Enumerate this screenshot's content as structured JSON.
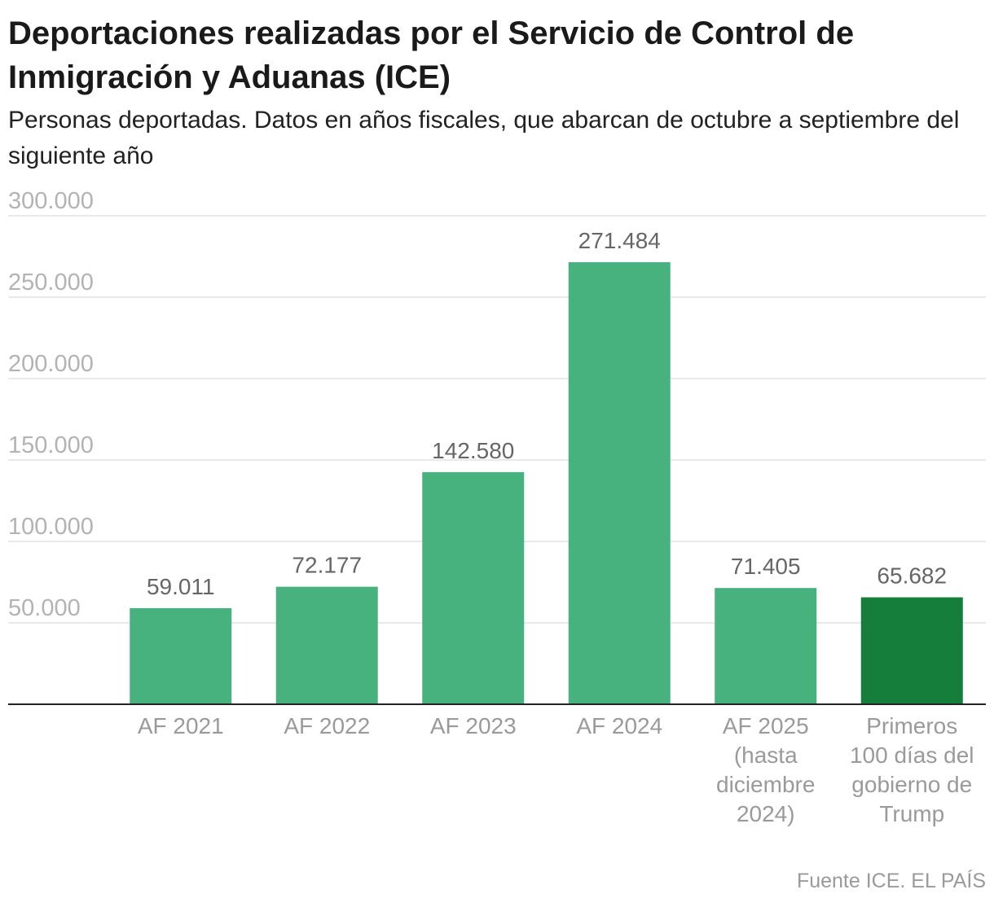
{
  "chart_data": {
    "type": "bar",
    "title": "Deportaciones realizadas por el Servicio de Control de Inmigración y Aduanas (ICE)",
    "subtitle": "Personas deportadas. Datos en años fiscales, que abarcan de octubre a septiembre del siguiente año",
    "categories": [
      [
        "AF 2021"
      ],
      [
        "AF 2022"
      ],
      [
        "AF 2023"
      ],
      [
        "AF 2024"
      ],
      [
        "AF 2025",
        "(hasta",
        "diciembre",
        "2024)"
      ],
      [
        "Primeros",
        "100 días del",
        "gobierno de",
        "Trump"
      ]
    ],
    "values": [
      59011,
      72177,
      142580,
      271484,
      71405,
      65682
    ],
    "value_labels": [
      "59.011",
      "72.177",
      "142.580",
      "271.484",
      "71.405",
      "65.682"
    ],
    "ylim": [
      0,
      300000
    ],
    "yticks": [
      50000,
      100000,
      150000,
      200000,
      250000,
      300000
    ],
    "ytick_labels": [
      "50.000",
      "100.000",
      "150.000",
      "200.000",
      "250.000",
      "300.000"
    ],
    "bar_colors": [
      "#48b27e",
      "#48b27e",
      "#48b27e",
      "#48b27e",
      "#48b27e",
      "#157e3b"
    ],
    "grid": true,
    "legend": "none"
  },
  "source": "Fuente ICE. EL PAÍS"
}
